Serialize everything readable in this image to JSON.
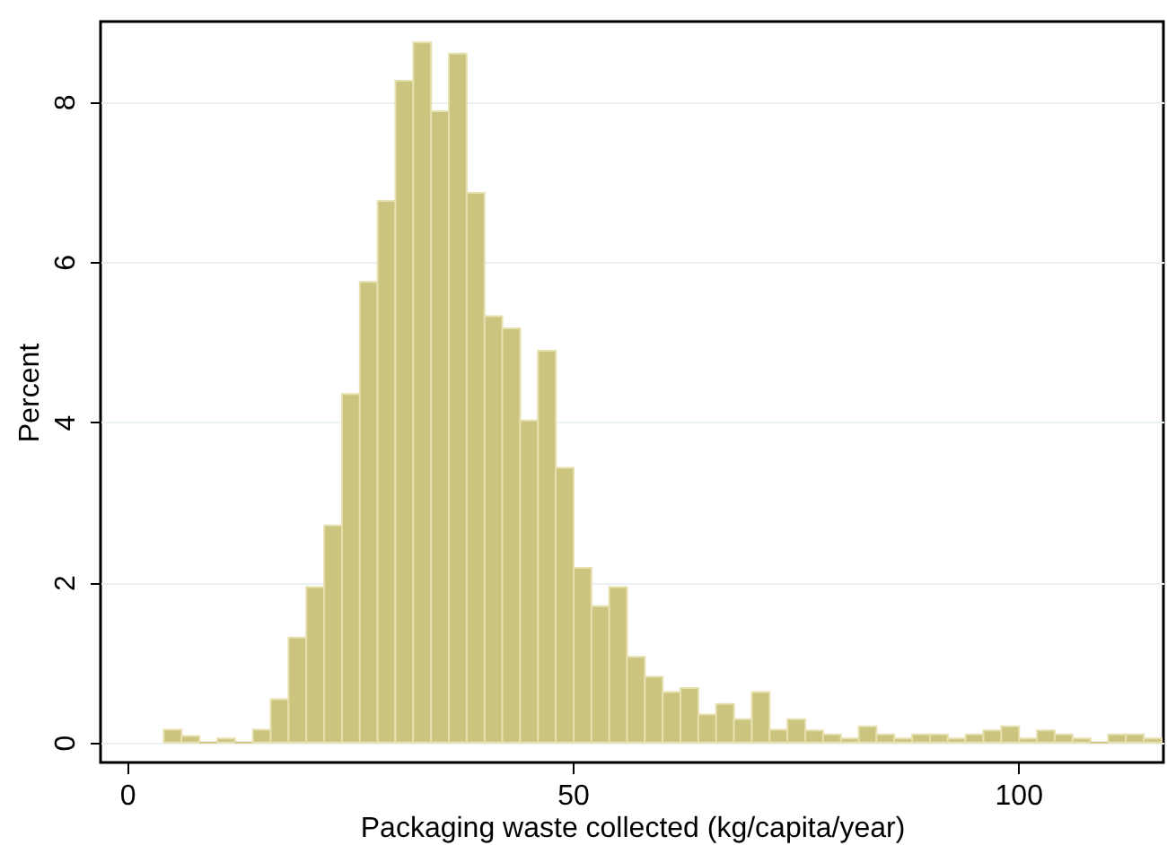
{
  "chart_data": {
    "type": "histogram",
    "xlabel": "Packaging waste collected (kg/capita/year)",
    "ylabel": "Percent",
    "color": "#cbc47f",
    "bins": [
      4.1,
      6.1,
      8.1,
      10.1,
      12.1,
      14.1,
      16.1,
      18.1,
      20.1,
      22.1,
      24.1,
      26.1,
      28.1,
      30.1,
      32.1,
      34.1,
      36.1,
      38.1,
      40.1,
      42.1,
      44.1,
      46.1,
      48.1,
      50.1,
      52.1,
      54.1,
      56.1,
      58.1,
      60.1,
      62.1,
      64.1,
      66.1,
      68.1,
      70.1,
      72.1,
      74.1,
      76.1,
      78.1,
      80.1,
      82.1,
      84.1,
      86.1,
      88.1,
      90.1,
      92.1,
      94.1,
      96.1,
      98.1,
      100.1,
      102.1,
      104.1,
      106.1,
      108.1,
      110.1,
      112.1,
      114.1,
      116.1
    ],
    "values": [
      0.16,
      0.08,
      0,
      0.05,
      0,
      0.16,
      0.54,
      1.31,
      1.94,
      2.71,
      4.35,
      5.75,
      6.76,
      8.26,
      8.74,
      7.88,
      8.6,
      6.86,
      5.32,
      5.17,
      4.02,
      4.89,
      3.43,
      2.18,
      1.7,
      1.94,
      1.07,
      0.82,
      0.63,
      0.68,
      0.35,
      0.48,
      0.29,
      0.63,
      0.16,
      0.29,
      0.15,
      0.1,
      0.05,
      0.2,
      0.1,
      0.05,
      0.1,
      0.1,
      0.05,
      0.1,
      0.15,
      0.2,
      0.05,
      0.15,
      0.1,
      0.05,
      0,
      0.1,
      0.1,
      0.05
    ],
    "xlim": [
      -3,
      116.3
    ],
    "ylim": [
      -0.25,
      9.0
    ],
    "xticks": [
      0,
      50,
      100
    ],
    "yticks": [
      0,
      2,
      4,
      6,
      8
    ],
    "grid": "y"
  }
}
